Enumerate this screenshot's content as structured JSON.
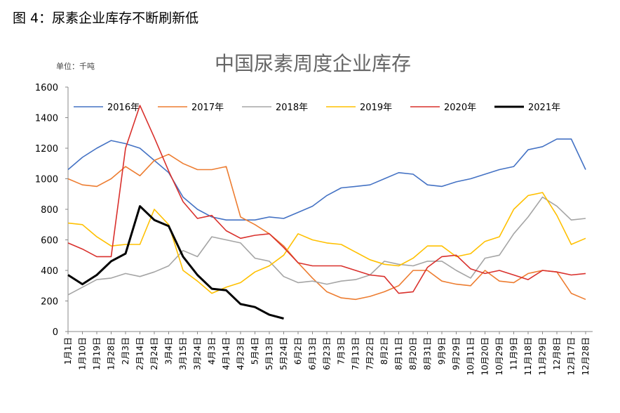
{
  "chart_data": {
    "type": "line",
    "caption": "图 4：尿素企业库存不断刷新低",
    "title": "中国尿素周度企业库存",
    "unit_label": "单位：千吨",
    "categories": [
      "1月1日",
      "1月10日",
      "1月19日",
      "1月28日",
      "2月3日",
      "2月14日",
      "2月24日",
      "3月4日",
      "3月15日",
      "3月24日",
      "4月3日",
      "4月14日",
      "4月23日",
      "5月4日",
      "5月13日",
      "5月24日",
      "6月2日",
      "6月13日",
      "6月23日",
      "7月3日",
      "7月13日",
      "7月22日",
      "8月2日",
      "8月11日",
      "8月20日",
      "8月31日",
      "9月9日",
      "9月29日",
      "10月11日",
      "10月20日",
      "10月29日",
      "11月9日",
      "11月18日",
      "11月29日",
      "12月8日",
      "12月17日",
      "12月28日"
    ],
    "series": [
      {
        "name": "2016年",
        "color": "#4472c4",
        "width": 1.6,
        "values": [
          1060,
          1140,
          1200,
          1250,
          1230,
          1200,
          1120,
          1040,
          880,
          800,
          750,
          730,
          730,
          730,
          750,
          740,
          780,
          820,
          890,
          940,
          950,
          960,
          1000,
          1040,
          1030,
          960,
          950,
          980,
          1000,
          1030,
          1060,
          1080,
          1190,
          1210,
          1260,
          1260,
          1060
        ]
      },
      {
        "name": "2017年",
        "color": "#ed7d31",
        "width": 1.6,
        "values": [
          1000,
          960,
          950,
          1000,
          1080,
          1020,
          1120,
          1160,
          1100,
          1060,
          1060,
          1080,
          750,
          700,
          640,
          560,
          450,
          350,
          260,
          220,
          210,
          230,
          260,
          300,
          400,
          400,
          330,
          310,
          300,
          400,
          330,
          320,
          380,
          400,
          390,
          250,
          210
        ]
      },
      {
        "name": "2018年",
        "color": "#a5a5a5",
        "width": 1.6,
        "values": [
          240,
          290,
          340,
          350,
          380,
          360,
          390,
          430,
          530,
          490,
          620,
          600,
          580,
          480,
          460,
          360,
          320,
          330,
          310,
          330,
          340,
          370,
          460,
          440,
          430,
          460,
          460,
          400,
          350,
          480,
          500,
          640,
          750,
          880,
          820,
          730,
          740
        ]
      },
      {
        "name": "2019年",
        "color": "#ffc000",
        "width": 1.6,
        "values": [
          710,
          700,
          620,
          560,
          570,
          570,
          800,
          700,
          400,
          330,
          250,
          290,
          320,
          390,
          430,
          500,
          640,
          600,
          580,
          570,
          520,
          470,
          440,
          430,
          480,
          560,
          560,
          490,
          510,
          590,
          620,
          800,
          890,
          910,
          760,
          570,
          610
        ]
      },
      {
        "name": "2020年",
        "color": "#d9302c",
        "width": 1.6,
        "values": [
          580,
          540,
          490,
          490,
          1200,
          1480,
          1270,
          1050,
          850,
          740,
          760,
          660,
          610,
          630,
          640,
          550,
          450,
          430,
          430,
          430,
          400,
          370,
          360,
          250,
          260,
          420,
          490,
          500,
          410,
          380,
          400,
          370,
          340,
          400,
          390,
          370,
          380
        ]
      },
      {
        "name": "2021年",
        "color": "#000000",
        "width": 3,
        "values": [
          370,
          310,
          370,
          460,
          510,
          820,
          730,
          690,
          490,
          370,
          280,
          270,
          180,
          160,
          110,
          85,
          null,
          null,
          null,
          null,
          null,
          null,
          null,
          null,
          null,
          null,
          null,
          null,
          null,
          null,
          null,
          null,
          null,
          null,
          null,
          null,
          null
        ]
      }
    ],
    "ylim": [
      0,
      1600
    ],
    "yticks": [
      0,
      200,
      400,
      600,
      800,
      1000,
      1200,
      1400,
      1600
    ]
  }
}
